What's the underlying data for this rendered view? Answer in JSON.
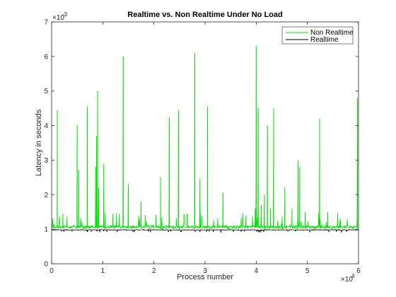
{
  "chart_data": {
    "type": "line",
    "title": "Realtime vs. Non Realtime Under No Load",
    "xlabel": "Process number",
    "ylabel": "Latency in seconds",
    "xlim": [
      0,
      60000
    ],
    "ylim": [
      0,
      0.007
    ],
    "x_ticks": [
      0,
      1,
      2,
      3,
      4,
      5,
      6
    ],
    "y_ticks": [
      0,
      1,
      2,
      3,
      4,
      5,
      6,
      7
    ],
    "x_exponent": {
      "base": "×10",
      "power": "4"
    },
    "y_exponent": {
      "base": "×10",
      "power": "-3"
    },
    "grid": false,
    "legend_position": "top-right",
    "series": [
      {
        "name": "Non Realtime",
        "color": "#00e000",
        "baseline": 0.00105,
        "spikes": [
          [
            1100,
            0.00445
          ],
          [
            2200,
            0.00145
          ],
          [
            5000,
            0.004
          ],
          [
            5300,
            0.0027
          ],
          [
            7000,
            0.00455
          ],
          [
            8600,
            0.0028
          ],
          [
            8800,
            0.0037
          ],
          [
            9000,
            0.005
          ],
          [
            9200,
            0.0022
          ],
          [
            10200,
            0.0029
          ],
          [
            12000,
            0.00145
          ],
          [
            14000,
            0.006
          ],
          [
            15000,
            0.0023
          ],
          [
            17500,
            0.0018
          ],
          [
            21300,
            0.0025
          ],
          [
            23000,
            0.00425
          ],
          [
            24800,
            0.00445
          ],
          [
            28000,
            0.0061
          ],
          [
            29000,
            0.00245
          ],
          [
            30500,
            0.00455
          ],
          [
            33500,
            0.00205
          ],
          [
            38000,
            0.0014
          ],
          [
            39800,
            0.0016
          ],
          [
            40000,
            0.0063
          ],
          [
            40400,
            0.0045
          ],
          [
            41000,
            0.0017
          ],
          [
            41600,
            0.002
          ],
          [
            42200,
            0.004
          ],
          [
            42800,
            0.0016
          ],
          [
            43400,
            0.0045
          ],
          [
            45600,
            0.0022
          ],
          [
            47000,
            0.0016
          ],
          [
            48200,
            0.003
          ],
          [
            48500,
            0.0028
          ],
          [
            49600,
            0.0015
          ],
          [
            52400,
            0.0042
          ],
          [
            54000,
            0.0015
          ],
          [
            56400,
            0.0013
          ],
          [
            59800,
            0.0048
          ]
        ]
      },
      {
        "name": "Realtime",
        "color": "#000000",
        "baseline": 0.00098
      }
    ]
  }
}
